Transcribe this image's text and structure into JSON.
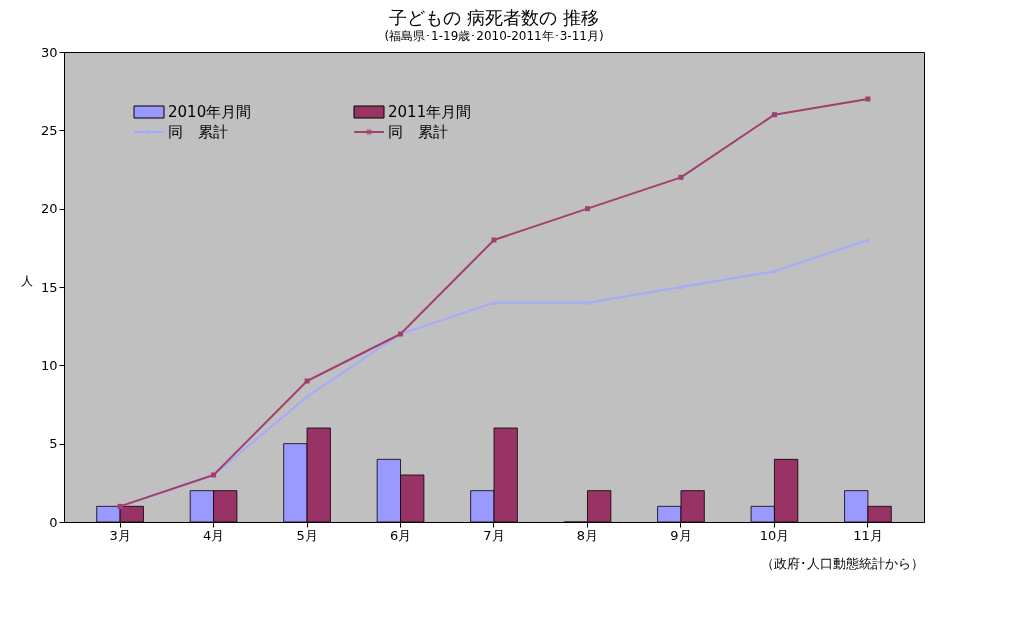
{
  "chart_data": {
    "type": "bar",
    "title": "子どもの 病死者数の 推移",
    "subtitle": "(福島県･1-19歳･2010-2011年･3-11月)",
    "ylabel": "人",
    "categories": [
      "3月",
      "4月",
      "5月",
      "6月",
      "7月",
      "8月",
      "9月",
      "10月",
      "11月"
    ],
    "series": [
      {
        "name": "2010年月間",
        "color": "#9999ff",
        "values": [
          1,
          2,
          5,
          4,
          2,
          0,
          1,
          1,
          2
        ]
      },
      {
        "name": "2011年月間",
        "color": "#993366",
        "values": [
          1,
          2,
          6,
          3,
          6,
          2,
          2,
          4,
          1
        ]
      },
      {
        "name": "同　累計",
        "type": "line",
        "color": "#a6aaff",
        "marker": "triangle",
        "values": [
          1,
          3,
          8,
          12,
          14,
          14,
          15,
          16,
          18
        ]
      },
      {
        "name": "同　累計",
        "type": "line",
        "color": "#a0406e",
        "marker": "square",
        "values": [
          1,
          3,
          9,
          12,
          18,
          20,
          22,
          26,
          27
        ]
      }
    ],
    "ylim": [
      0,
      30
    ],
    "yticks": [
      0,
      5,
      10,
      15,
      20,
      25,
      30
    ],
    "grid": false,
    "legend": "top left",
    "annotations": [
      "（政府･人口動態統計から）"
    ]
  }
}
